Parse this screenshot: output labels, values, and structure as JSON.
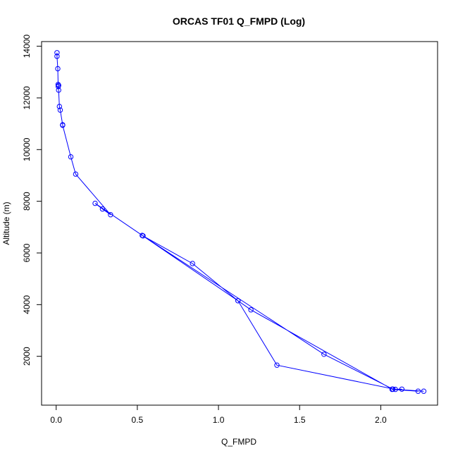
{
  "chart_data": {
    "type": "line",
    "title": "ORCAS TF01 Q_FMPD (Log)",
    "xlabel": "Q_FMPD",
    "ylabel": "Altitude (m)",
    "xlim": [
      -0.09,
      2.35
    ],
    "ylim": [
      110,
      14180
    ],
    "xticks": [
      0.0,
      0.5,
      1.0,
      1.5,
      2.0
    ],
    "xtick_labels": [
      "0.0",
      "0.5",
      "1.0",
      "1.5",
      "2.0"
    ],
    "yticks": [
      2000,
      4000,
      6000,
      8000,
      10000,
      12000,
      14000
    ],
    "ytick_labels": [
      "2000",
      "4000",
      "6000",
      "8000",
      "10000",
      "12000",
      "14000"
    ],
    "grid": false,
    "legend": "none",
    "line_color": "#0000ff",
    "marker": "open-circle",
    "series": [
      {
        "x": [
          0.005,
          0.005,
          0.01,
          0.012,
          0.015,
          0.013,
          0.015,
          0.02,
          0.025,
          0.04,
          0.04,
          0.09,
          0.12,
          0.335,
          0.285,
          0.24,
          0.535,
          0.84,
          1.12,
          1.36,
          2.09,
          2.265,
          2.075,
          1.65,
          0.53,
          1.12,
          1.2,
          2.07,
          2.23,
          2.07,
          2.13
        ],
        "y": [
          13750,
          13610,
          13130,
          12520,
          12480,
          12440,
          12300,
          11670,
          11530,
          10960,
          10940,
          9720,
          9050,
          7480,
          7700,
          7920,
          6660,
          5590,
          4150,
          1660,
          720,
          650,
          730,
          2080,
          6680,
          4150,
          3800,
          730,
          650,
          720,
          730
        ]
      }
    ]
  }
}
